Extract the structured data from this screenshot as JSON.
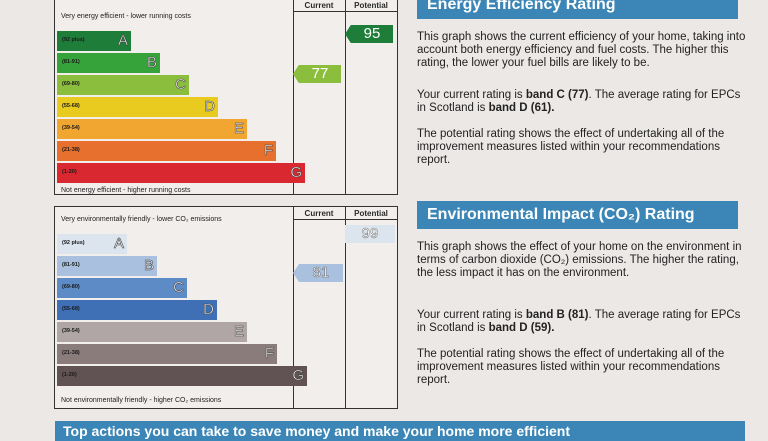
{
  "energy_chart": {
    "top_label": "Very energy efficient - lower running costs",
    "bottom_label": "Not energy efficient - higher running costs",
    "current_header": "Current",
    "potential_header": "Potential",
    "current_value": "77",
    "potential_value": "95",
    "bands": [
      {
        "range": "(92 plus)",
        "letter": "A",
        "color": "#1f7d3a"
      },
      {
        "range": "(81-91)",
        "letter": "B",
        "color": "#36a23a"
      },
      {
        "range": "(69-80)",
        "letter": "C",
        "color": "#8cbe3d"
      },
      {
        "range": "(55-68)",
        "letter": "D",
        "color": "#e8cb1e"
      },
      {
        "range": "(39-54)",
        "letter": "E",
        "color": "#f0a630"
      },
      {
        "range": "(21-38)",
        "letter": "F",
        "color": "#e8702e"
      },
      {
        "range": "(1-20)",
        "letter": "G",
        "color": "#d92830"
      }
    ]
  },
  "environment_chart": {
    "top_label": "Very environmentally friendly - lower CO₂ emissions",
    "bottom_label": "Not environmentally friendly - higher CO₂ emissions",
    "current_header": "Current",
    "potential_header": "Potential",
    "current_value": "81",
    "potential_value": "99",
    "bands": [
      {
        "range": "(92 plus)",
        "letter": "A",
        "color": "#dce4ee"
      },
      {
        "range": "(81-91)",
        "letter": "B",
        "color": "#a9c1de"
      },
      {
        "range": "(69-80)",
        "letter": "C",
        "color": "#5d8bc6"
      },
      {
        "range": "(55-68)",
        "letter": "D",
        "color": "#3f6fb4"
      },
      {
        "range": "(39-54)",
        "letter": "E",
        "color": "#b0a6a6"
      },
      {
        "range": "(21-38)",
        "letter": "F",
        "color": "#8b7c7c"
      },
      {
        "range": "(1-20)",
        "letter": "G",
        "color": "#615253"
      }
    ]
  },
  "energy_panel": {
    "title": "Energy Efficiency Rating",
    "para1": "This graph shows the current efficiency of your home, taking into account both energy efficiency and fuel costs. The higher this rating, the lower your fuel bills are likely to be.",
    "para2_prefix": "Your current rating is ",
    "para2_bold1": "band C (77)",
    "para2_mid": ". The average rating for EPCs in Scotland is ",
    "para2_bold2": "band D (61).",
    "para3": "The potential rating shows the effect of undertaking all of the improvement measures listed within your recommendations report."
  },
  "environment_panel": {
    "title": "Environmental Impact (CO₂) Rating",
    "para1": "This graph shows the effect of your home on the environment in terms of carbon dioxide (CO₂) emissions. The higher the rating, the less impact it has on the environment.",
    "para2_prefix": "Your current rating is ",
    "para2_bold1": "band B (81)",
    "para2_mid": ". The average rating for EPCs in Scotland is ",
    "para2_bold2": "band D (59).",
    "para3": "The potential rating shows the effect of undertaking all of the improvement measures listed within your recommendations report."
  },
  "bottom_bar": {
    "text": "Top actions you can take to save money and make your home more efficient"
  },
  "colors": {
    "panel_blue": "#3b86b6",
    "energy_current_arrow": "#8cbe3d",
    "energy_potential_arrow": "#1f7d3a",
    "env_current_arrow": "#a9c1de",
    "env_potential_arrow": "#dce4ee"
  }
}
